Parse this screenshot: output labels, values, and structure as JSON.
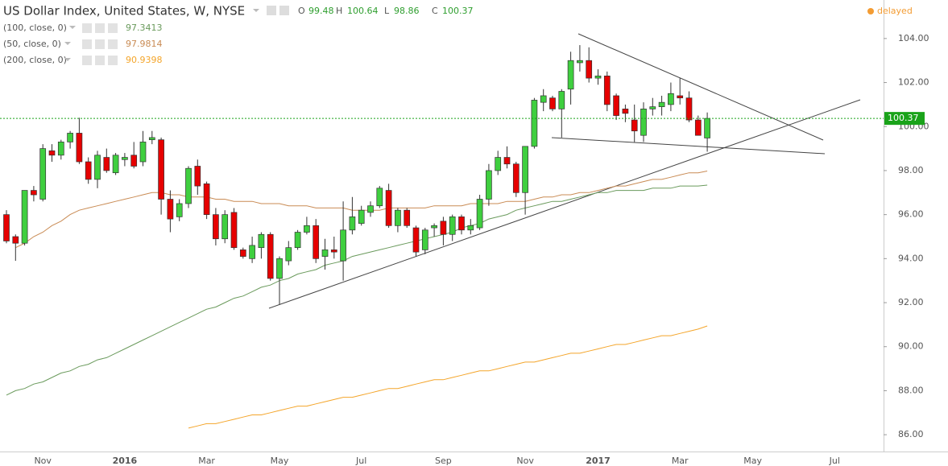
{
  "chart_data": {
    "type": "candlestick",
    "title": "US Dollar Index, United States, W, NYSE",
    "status": "delayed",
    "ohlc_labels": [
      "O",
      "H",
      "L",
      "C"
    ],
    "categories": [
      null,
      null,
      null,
      null,
      "Nov",
      null,
      null,
      null,
      null,
      null,
      null,
      null,
      null,
      "2016",
      null,
      null,
      null,
      null,
      null,
      null,
      null,
      null,
      "Mar",
      null,
      null,
      null,
      null,
      null,
      null,
      null,
      "May",
      null,
      null,
      null,
      null,
      null,
      null,
      null,
      null,
      "Jul",
      null,
      null,
      null,
      null,
      null,
      null,
      null,
      null,
      "Sep",
      null,
      null,
      null,
      null,
      null,
      null,
      null,
      null,
      "Nov",
      null,
      null,
      null,
      null,
      null,
      null,
      null,
      "2017",
      null,
      null,
      null,
      null,
      null,
      null,
      null,
      null,
      "Mar",
      null,
      null,
      null,
      null,
      null,
      null,
      null,
      "May",
      null,
      null,
      null,
      null,
      null,
      null,
      null,
      null,
      "Jul"
    ],
    "open": [
      96.0,
      95.0,
      94.7,
      97.1,
      96.7,
      98.9,
      98.7,
      99.3,
      99.7,
      98.4,
      97.6,
      98.6,
      97.9,
      98.5,
      98.7,
      98.4,
      99.4,
      99.4,
      96.7,
      95.9,
      96.5,
      98.2,
      97.4,
      96.0,
      94.9,
      96.1,
      94.4,
      94.0,
      94.5,
      95.1,
      93.1,
      93.9,
      94.5,
      95.2,
      95.5,
      94.1,
      94.4,
      93.9,
      95.3,
      95.6,
      96.1,
      96.4,
      97.1,
      95.5,
      96.2,
      95.4,
      94.4,
      95.4,
      95.7,
      95.1,
      95.9,
      95.3,
      95.4,
      96.7,
      98.0,
      98.6,
      98.3,
      97.0,
      99.1,
      101.1,
      101.3,
      100.8,
      101.7,
      102.9,
      103.0,
      102.2,
      102.3,
      101.4,
      100.8,
      100.3,
      99.6,
      100.8,
      100.9,
      101.0,
      101.4,
      101.3,
      100.3,
      99.48,
      null,
      null,
      null,
      null,
      null,
      null,
      null,
      null,
      null,
      null,
      null,
      null,
      null,
      null
    ],
    "high": [
      96.2,
      95.1,
      97.1,
      97.3,
      99.2,
      99.2,
      99.4,
      99.8,
      100.4,
      98.6,
      98.9,
      99.0,
      98.8,
      98.8,
      99.3,
      99.8,
      99.8,
      99.5,
      97.1,
      96.7,
      98.2,
      98.5,
      97.5,
      96.3,
      96.2,
      96.3,
      94.5,
      95.0,
      95.2,
      95.2,
      94.1,
      94.8,
      95.3,
      95.9,
      95.8,
      94.9,
      95.0,
      96.6,
      96.8,
      96.4,
      96.6,
      97.3,
      97.4,
      96.3,
      96.3,
      95.5,
      95.4,
      95.6,
      95.9,
      96.0,
      96.0,
      95.8,
      96.9,
      98.3,
      98.9,
      99.1,
      98.4,
      99.1,
      101.3,
      101.7,
      101.4,
      101.7,
      103.4,
      103.7,
      103.6,
      102.6,
      102.5,
      101.5,
      101.0,
      101.0,
      101.1,
      101.3,
      101.4,
      102.0,
      102.2,
      101.6,
      100.5,
      100.64,
      null,
      null,
      null,
      null,
      null,
      null,
      null,
      null,
      null,
      null,
      null,
      null,
      null,
      null
    ],
    "low": [
      94.7,
      93.9,
      94.6,
      96.6,
      96.6,
      98.4,
      98.5,
      99.0,
      98.3,
      97.4,
      97.2,
      97.9,
      97.8,
      98.2,
      98.1,
      98.2,
      99.2,
      96.0,
      95.2,
      95.7,
      96.3,
      96.9,
      95.8,
      94.6,
      94.7,
      94.4,
      94.0,
      93.8,
      94.0,
      93.0,
      91.9,
      93.7,
      94.4,
      95.1,
      93.8,
      93.5,
      94.0,
      93.0,
      95.1,
      95.5,
      95.9,
      96.3,
      95.4,
      95.2,
      95.4,
      94.1,
      94.2,
      95.0,
      94.6,
      94.8,
      95.1,
      95.1,
      95.3,
      96.4,
      97.8,
      98.1,
      96.8,
      96.0,
      99.0,
      100.7,
      100.7,
      99.5,
      101.0,
      102.5,
      102.0,
      101.9,
      100.7,
      100.3,
      100.2,
      99.3,
      99.3,
      100.5,
      100.5,
      100.7,
      101.0,
      100.2,
      99.6,
      98.86,
      null,
      null,
      null,
      null,
      null,
      null,
      null,
      null,
      null,
      null,
      null,
      null,
      null,
      null
    ],
    "close": [
      94.8,
      94.7,
      97.1,
      96.9,
      99.0,
      98.7,
      99.3,
      99.7,
      98.4,
      97.6,
      98.7,
      98.0,
      98.7,
      98.6,
      98.2,
      99.3,
      99.5,
      96.7,
      95.8,
      96.5,
      98.1,
      97.3,
      96.0,
      94.9,
      96.0,
      94.5,
      94.1,
      94.6,
      95.1,
      93.1,
      94.0,
      94.5,
      95.2,
      95.5,
      94.0,
      94.4,
      94.3,
      95.3,
      95.9,
      96.2,
      96.4,
      97.2,
      95.5,
      96.2,
      95.5,
      94.3,
      95.3,
      95.5,
      95.1,
      95.9,
      95.3,
      95.5,
      96.7,
      98.0,
      98.6,
      98.3,
      97.0,
      99.1,
      101.2,
      101.4,
      100.8,
      101.6,
      103.0,
      103.0,
      102.2,
      102.3,
      101.0,
      100.5,
      100.6,
      99.8,
      100.8,
      100.9,
      101.1,
      101.5,
      101.3,
      100.3,
      99.6,
      100.37,
      null,
      null,
      null,
      null,
      null,
      null,
      null,
      null,
      null,
      null,
      null,
      null,
      null,
      null
    ],
    "up_color": "#3fcf3f",
    "down_color": "#e60000",
    "last_price_color": "#1aa31a",
    "series": [
      {
        "name": "(100, close, 0)",
        "color": "#6a9a5c",
        "values": [
          87.8,
          88.0,
          88.1,
          88.3,
          88.4,
          88.6,
          88.8,
          88.9,
          89.1,
          89.2,
          89.4,
          89.5,
          89.7,
          89.9,
          90.1,
          90.3,
          90.5,
          90.7,
          90.9,
          91.1,
          91.3,
          91.5,
          91.7,
          91.8,
          92.0,
          92.2,
          92.3,
          92.5,
          92.7,
          92.8,
          93.0,
          93.1,
          93.3,
          93.4,
          93.5,
          93.7,
          93.8,
          93.9,
          94.1,
          94.2,
          94.3,
          94.4,
          94.5,
          94.6,
          94.7,
          94.8,
          94.9,
          95.0,
          95.1,
          95.2,
          95.4,
          95.5,
          95.6,
          95.8,
          95.9,
          96.0,
          96.2,
          96.3,
          96.4,
          96.5,
          96.6,
          96.6,
          96.7,
          96.8,
          96.9,
          97.0,
          97.0,
          97.1,
          97.1,
          97.1,
          97.1,
          97.2,
          97.2,
          97.2,
          97.3,
          97.3,
          97.3,
          97.3413,
          null,
          null,
          null,
          null,
          null,
          null,
          null,
          null,
          null,
          null,
          null,
          null,
          null,
          null
        ]
      },
      {
        "name": "(50, close, 0)",
        "color": "#c98b54",
        "values": [
          null,
          94.5,
          94.7,
          95.0,
          95.2,
          95.5,
          95.7,
          96.0,
          96.2,
          96.3,
          96.4,
          96.5,
          96.6,
          96.7,
          96.8,
          96.9,
          97.0,
          97.0,
          96.9,
          96.9,
          96.8,
          96.8,
          96.8,
          96.7,
          96.7,
          96.6,
          96.6,
          96.6,
          96.5,
          96.5,
          96.5,
          96.4,
          96.4,
          96.4,
          96.3,
          96.3,
          96.3,
          96.3,
          96.2,
          96.2,
          96.2,
          96.2,
          96.3,
          96.3,
          96.3,
          96.3,
          96.3,
          96.4,
          96.4,
          96.4,
          96.4,
          96.5,
          96.5,
          96.5,
          96.5,
          96.6,
          96.6,
          96.6,
          96.7,
          96.8,
          96.8,
          96.9,
          96.9,
          97.0,
          97.0,
          97.1,
          97.2,
          97.3,
          97.3,
          97.4,
          97.5,
          97.6,
          97.6,
          97.7,
          97.8,
          97.9,
          97.9,
          97.9814,
          null,
          null,
          null,
          null,
          null,
          null,
          null,
          null,
          null,
          null,
          null,
          null,
          null,
          null
        ]
      },
      {
        "name": "(200, close, 0)",
        "color": "#f4a52a",
        "values": [
          null,
          null,
          null,
          null,
          null,
          null,
          null,
          null,
          null,
          null,
          null,
          null,
          null,
          null,
          null,
          null,
          null,
          null,
          null,
          null,
          86.3,
          86.4,
          86.5,
          86.5,
          86.6,
          86.7,
          86.8,
          86.9,
          86.9,
          87.0,
          87.1,
          87.2,
          87.3,
          87.3,
          87.4,
          87.5,
          87.6,
          87.7,
          87.7,
          87.8,
          87.9,
          88.0,
          88.1,
          88.1,
          88.2,
          88.3,
          88.4,
          88.5,
          88.5,
          88.6,
          88.7,
          88.8,
          88.9,
          88.9,
          89.0,
          89.1,
          89.2,
          89.3,
          89.3,
          89.4,
          89.5,
          89.6,
          89.7,
          89.7,
          89.8,
          89.9,
          90.0,
          90.1,
          90.1,
          90.2,
          90.3,
          90.4,
          90.5,
          90.5,
          90.6,
          90.7,
          90.8,
          90.9398,
          null,
          null,
          null,
          null,
          null,
          null,
          null,
          null,
          null,
          null,
          null,
          null,
          null,
          null
        ]
      }
    ],
    "ylim": [
      85.2,
      105.75
    ],
    "yticks": [
      {
        "value": 86,
        "label": "86.00"
      },
      {
        "value": 88,
        "label": "88.00"
      },
      {
        "value": 90,
        "label": "90.00"
      },
      {
        "value": 92,
        "label": "92.00"
      },
      {
        "value": 94,
        "label": "94.00"
      },
      {
        "value": 96,
        "label": "96.00"
      },
      {
        "value": 98,
        "label": "98.00"
      },
      {
        "value": 100,
        "label": "100.00"
      },
      {
        "value": 102,
        "label": "102.00"
      },
      {
        "value": 104,
        "label": "104.00"
      }
    ]
  }
}
